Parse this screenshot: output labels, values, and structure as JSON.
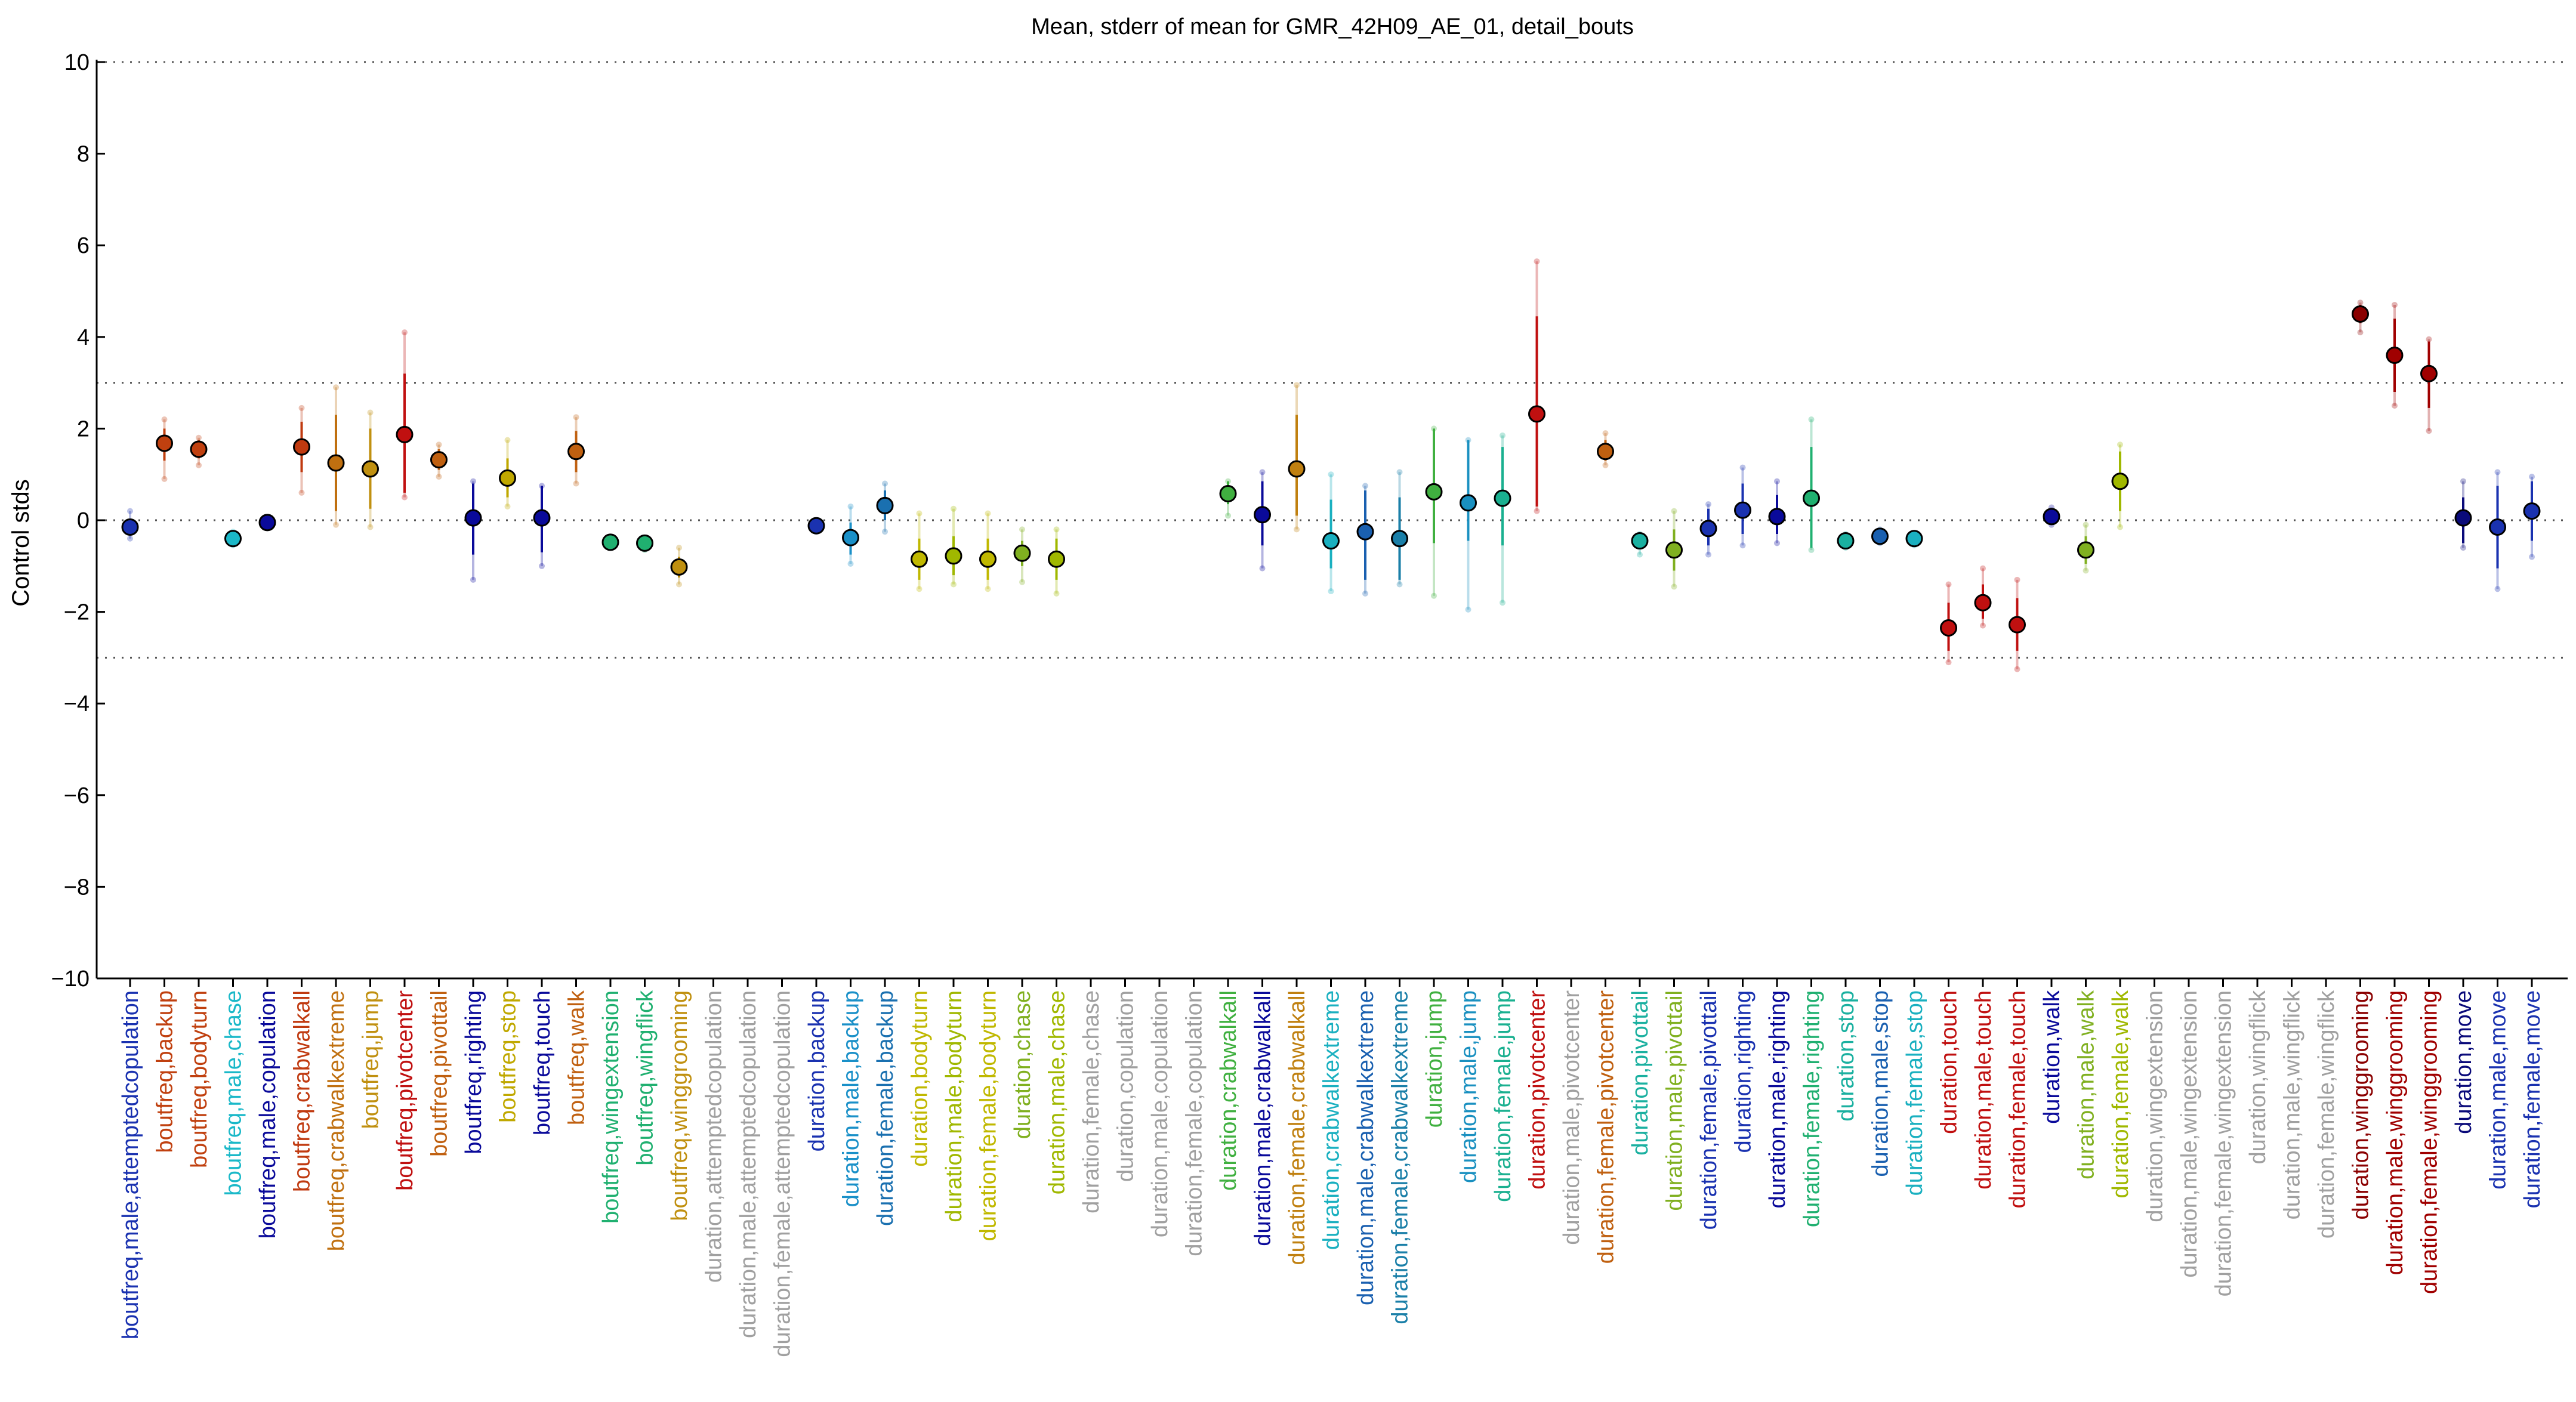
{
  "chart_data": {
    "type": "scatter",
    "title": "Mean, stderr of mean for GMR_42H09_AE_01, detail_bouts",
    "ylabel": "Control stds",
    "xlabel": "",
    "ylim": [
      -10,
      10
    ],
    "yticks": [
      -10,
      -8,
      -6,
      -4,
      -2,
      0,
      2,
      4,
      6,
      8,
      10
    ],
    "reference_lines": [
      10,
      3,
      0,
      -3,
      -10
    ],
    "grid": false,
    "points": [
      {
        "label": "boutfreq,male,attemptedcopulation",
        "mean": -0.15,
        "lo": -0.3,
        "hi": 0.0,
        "lo2": -0.4,
        "hi2": 0.2,
        "color": "#1a32b0"
      },
      {
        "label": "boutfreq,backup",
        "mean": 1.68,
        "lo": 1.3,
        "hi": 2.0,
        "lo2": 0.9,
        "hi2": 2.2,
        "color": "#c0400f"
      },
      {
        "label": "boutfreq,bodyturn",
        "mean": 1.55,
        "lo": 1.35,
        "hi": 1.75,
        "lo2": 1.2,
        "hi2": 1.8,
        "color": "#c0400f"
      },
      {
        "label": "boutfreq,male,chase",
        "mean": -0.4,
        "lo": -0.5,
        "hi": -0.3,
        "lo2": -0.55,
        "hi2": -0.25,
        "color": "#1ab8c8"
      },
      {
        "label": "boutfreq,male,copulation",
        "mean": -0.05,
        "lo": -0.12,
        "hi": 0.02,
        "lo2": -0.15,
        "hi2": 0.05,
        "color": "#0a0a9a"
      },
      {
        "label": "boutfreq,crabwalkall",
        "mean": 1.6,
        "lo": 1.05,
        "hi": 2.15,
        "lo2": 0.6,
        "hi2": 2.45,
        "color": "#c03a10"
      },
      {
        "label": "boutfreq,crabwalkextreme",
        "mean": 1.25,
        "lo": 0.2,
        "hi": 2.3,
        "lo2": -0.1,
        "hi2": 2.9,
        "color": "#c07010"
      },
      {
        "label": "boutfreq,jump",
        "mean": 1.12,
        "lo": 0.25,
        "hi": 2.0,
        "lo2": -0.15,
        "hi2": 2.35,
        "color": "#c09010"
      },
      {
        "label": "boutfreq,pivotcenter",
        "mean": 1.87,
        "lo": 0.6,
        "hi": 3.2,
        "lo2": 0.5,
        "hi2": 4.1,
        "color": "#c01010"
      },
      {
        "label": "boutfreq,pivottail",
        "mean": 1.32,
        "lo": 1.1,
        "hi": 1.55,
        "lo2": 0.95,
        "hi2": 1.65,
        "color": "#c06010"
      },
      {
        "label": "boutfreq,righting",
        "mean": 0.05,
        "lo": -0.75,
        "hi": 0.8,
        "lo2": -1.3,
        "hi2": 0.85,
        "color": "#0a0a9a"
      },
      {
        "label": "boutfreq,stop",
        "mean": 0.92,
        "lo": 0.5,
        "hi": 1.35,
        "lo2": 0.3,
        "hi2": 1.75,
        "color": "#c0a800"
      },
      {
        "label": "boutfreq,touch",
        "mean": 0.05,
        "lo": -0.7,
        "hi": 0.75,
        "lo2": -1.0,
        "hi2": 0.75,
        "color": "#0a0a9a"
      },
      {
        "label": "boutfreq,walk",
        "mean": 1.5,
        "lo": 1.05,
        "hi": 1.95,
        "lo2": 0.8,
        "hi2": 2.25,
        "color": "#c06010"
      },
      {
        "label": "boutfreq,wingextension",
        "mean": -0.48,
        "lo": -0.55,
        "hi": -0.42,
        "lo2": -0.6,
        "hi2": -0.4,
        "color": "#20b070"
      },
      {
        "label": "boutfreq,wingflick",
        "mean": -0.5,
        "lo": -0.6,
        "hi": -0.42,
        "lo2": -0.65,
        "hi2": -0.38,
        "color": "#20b070"
      },
      {
        "label": "boutfreq,winggrooming",
        "mean": -1.02,
        "lo": -1.25,
        "hi": -0.8,
        "lo2": -1.4,
        "hi2": -0.6,
        "color": "#c09010"
      },
      {
        "label": "duration,attemptedcopulation",
        "mean": null,
        "color": "#a0a0a0"
      },
      {
        "label": "duration,male,attemptedcopulation",
        "mean": null,
        "color": "#a0a0a0"
      },
      {
        "label": "duration,female,attemptedcopulation",
        "mean": null,
        "color": "#a0a0a0"
      },
      {
        "label": "duration,backup",
        "mean": -0.12,
        "lo": -0.2,
        "hi": -0.05,
        "lo2": -0.25,
        "hi2": -0.05,
        "color": "#1a32b0"
      },
      {
        "label": "duration,male,backup",
        "mean": -0.38,
        "lo": -0.75,
        "hi": -0.05,
        "lo2": -0.95,
        "hi2": 0.3,
        "color": "#1a90c8"
      },
      {
        "label": "duration,female,backup",
        "mean": 0.32,
        "lo": 0.0,
        "hi": 0.65,
        "lo2": -0.25,
        "hi2": 0.8,
        "color": "#1a70b0"
      },
      {
        "label": "duration,bodyturn",
        "mean": -0.85,
        "lo": -1.3,
        "hi": -0.4,
        "lo2": -1.5,
        "hi2": 0.15,
        "color": "#c0b800"
      },
      {
        "label": "duration,male,bodyturn",
        "mean": -0.78,
        "lo": -1.2,
        "hi": -0.35,
        "lo2": -1.4,
        "hi2": 0.25,
        "color": "#a0b800"
      },
      {
        "label": "duration,female,bodyturn",
        "mean": -0.85,
        "lo": -1.3,
        "hi": -0.4,
        "lo2": -1.5,
        "hi2": 0.15,
        "color": "#c0b800"
      },
      {
        "label": "duration,chase",
        "mean": -0.72,
        "lo": -1.0,
        "hi": -0.45,
        "lo2": -1.35,
        "hi2": -0.2,
        "color": "#80b020"
      },
      {
        "label": "duration,male,chase",
        "mean": -0.85,
        "lo": -1.3,
        "hi": -0.4,
        "lo2": -1.6,
        "hi2": -0.2,
        "color": "#a0b800"
      },
      {
        "label": "duration,female,chase",
        "mean": null,
        "color": "#a0a0a0"
      },
      {
        "label": "duration,copulation",
        "mean": null,
        "color": "#a0a0a0"
      },
      {
        "label": "duration,male,copulation",
        "mean": null,
        "color": "#a0a0a0"
      },
      {
        "label": "duration,female,copulation",
        "mean": null,
        "color": "#a0a0a0"
      },
      {
        "label": "duration,crabwalkall",
        "mean": 0.58,
        "lo": 0.35,
        "hi": 0.85,
        "lo2": 0.1,
        "hi2": 0.85,
        "color": "#40b040"
      },
      {
        "label": "duration,male,crabwalkall",
        "mean": 0.12,
        "lo": -0.55,
        "hi": 0.85,
        "lo2": -1.05,
        "hi2": 1.05,
        "color": "#0a0a9a"
      },
      {
        "label": "duration,female,crabwalkall",
        "mean": 1.12,
        "lo": 0.1,
        "hi": 2.3,
        "lo2": -0.2,
        "hi2": 2.95,
        "color": "#c08010"
      },
      {
        "label": "duration,crabwalkextreme",
        "mean": -0.45,
        "lo": -1.05,
        "hi": 0.45,
        "lo2": -1.55,
        "hi2": 1.0,
        "color": "#1ab0c0"
      },
      {
        "label": "duration,male,crabwalkextreme",
        "mean": -0.25,
        "lo": -1.3,
        "hi": 0.65,
        "lo2": -1.6,
        "hi2": 0.75,
        "color": "#1a60b0"
      },
      {
        "label": "duration,female,crabwalkextreme",
        "mean": -0.4,
        "lo": -1.3,
        "hi": 0.5,
        "lo2": -1.4,
        "hi2": 1.05,
        "color": "#1a7fa8"
      },
      {
        "label": "duration,jump",
        "mean": 0.62,
        "lo": -0.5,
        "hi": 2.0,
        "lo2": -1.65,
        "hi2": 2.0,
        "color": "#40b040"
      },
      {
        "label": "duration,male,jump",
        "mean": 0.38,
        "lo": -0.45,
        "hi": 1.75,
        "lo2": -1.95,
        "hi2": 1.75,
        "color": "#1a90c0"
      },
      {
        "label": "duration,female,jump",
        "mean": 0.48,
        "lo": -0.55,
        "hi": 1.6,
        "lo2": -1.8,
        "hi2": 1.85,
        "color": "#1ab090"
      },
      {
        "label": "duration,pivotcenter",
        "mean": 2.32,
        "lo": 0.3,
        "hi": 4.45,
        "lo2": 0.2,
        "hi2": 5.65,
        "color": "#c01010"
      },
      {
        "label": "duration,male,pivotcenter",
        "mean": null,
        "color": "#a0a0a0"
      },
      {
        "label": "duration,female,pivotcenter",
        "mean": 1.5,
        "lo": 1.3,
        "hi": 1.75,
        "lo2": 1.2,
        "hi2": 1.9,
        "color": "#c06010"
      },
      {
        "label": "duration,pivottail",
        "mean": -0.45,
        "lo": -0.6,
        "hi": -0.3,
        "lo2": -0.75,
        "hi2": -0.3,
        "color": "#1ab0a0"
      },
      {
        "label": "duration,male,pivottail",
        "mean": -0.65,
        "lo": -1.1,
        "hi": -0.2,
        "lo2": -1.45,
        "hi2": 0.2,
        "color": "#80b020"
      },
      {
        "label": "duration,female,pivottail",
        "mean": -0.18,
        "lo": -0.55,
        "hi": 0.25,
        "lo2": -0.75,
        "hi2": 0.35,
        "color": "#1a32b0"
      },
      {
        "label": "duration,righting",
        "mean": 0.22,
        "lo": -0.3,
        "hi": 0.8,
        "lo2": -0.55,
        "hi2": 1.15,
        "color": "#1a32b0"
      },
      {
        "label": "duration,male,righting",
        "mean": 0.08,
        "lo": -0.3,
        "hi": 0.55,
        "lo2": -0.5,
        "hi2": 0.85,
        "color": "#0a0a9a"
      },
      {
        "label": "duration,female,righting",
        "mean": 0.48,
        "lo": -0.6,
        "hi": 1.6,
        "lo2": -0.65,
        "hi2": 2.2,
        "color": "#20b070"
      },
      {
        "label": "duration,stop",
        "mean": -0.45,
        "lo": -0.55,
        "hi": -0.35,
        "lo2": -0.6,
        "hi2": -0.3,
        "color": "#1ab0a0"
      },
      {
        "label": "duration,male,stop",
        "mean": -0.35,
        "lo": -0.45,
        "hi": -0.25,
        "lo2": -0.5,
        "hi2": -0.2,
        "color": "#1a60b0"
      },
      {
        "label": "duration,female,stop",
        "mean": -0.4,
        "lo": -0.5,
        "hi": -0.32,
        "lo2": -0.55,
        "hi2": -0.3,
        "color": "#1ab0c0"
      },
      {
        "label": "duration,touch",
        "mean": -2.35,
        "lo": -2.85,
        "hi": -1.8,
        "lo2": -3.1,
        "hi2": -1.4,
        "color": "#c01010"
      },
      {
        "label": "duration,male,touch",
        "mean": -1.8,
        "lo": -2.15,
        "hi": -1.4,
        "lo2": -2.3,
        "hi2": -1.05,
        "color": "#c01010"
      },
      {
        "label": "duration,female,touch",
        "mean": -2.28,
        "lo": -2.85,
        "hi": -1.7,
        "lo2": -3.25,
        "hi2": -1.3,
        "color": "#c01010"
      },
      {
        "label": "duration,walk",
        "mean": 0.08,
        "lo": -0.05,
        "hi": 0.2,
        "lo2": -0.1,
        "hi2": 0.28,
        "color": "#0a0a9a"
      },
      {
        "label": "duration,male,walk",
        "mean": -0.65,
        "lo": -0.95,
        "hi": -0.35,
        "lo2": -1.1,
        "hi2": -0.1,
        "color": "#80b020"
      },
      {
        "label": "duration,female,walk",
        "mean": 0.85,
        "lo": 0.2,
        "hi": 1.5,
        "lo2": -0.15,
        "hi2": 1.65,
        "color": "#a0b800"
      },
      {
        "label": "duration,wingextension",
        "mean": null,
        "color": "#a0a0a0"
      },
      {
        "label": "duration,male,wingextension",
        "mean": null,
        "color": "#a0a0a0"
      },
      {
        "label": "duration,female,wingextension",
        "mean": null,
        "color": "#a0a0a0"
      },
      {
        "label": "duration,wingflick",
        "mean": null,
        "color": "#a0a0a0"
      },
      {
        "label": "duration,male,wingflick",
        "mean": null,
        "color": "#a0a0a0"
      },
      {
        "label": "duration,female,wingflick",
        "mean": null,
        "color": "#a0a0a0"
      },
      {
        "label": "duration,winggrooming",
        "mean": 4.5,
        "lo": 4.3,
        "hi": 4.7,
        "lo2": 4.1,
        "hi2": 4.75,
        "color": "#8a0000"
      },
      {
        "label": "duration,male,winggrooming",
        "mean": 3.6,
        "lo": 2.8,
        "hi": 4.4,
        "lo2": 2.5,
        "hi2": 4.7,
        "color": "#a00000"
      },
      {
        "label": "duration,female,winggrooming",
        "mean": 3.2,
        "lo": 2.45,
        "hi": 3.9,
        "lo2": 1.95,
        "hi2": 3.95,
        "color": "#a00000"
      },
      {
        "label": "duration,move",
        "mean": 0.05,
        "lo": -0.5,
        "hi": 0.5,
        "lo2": -0.6,
        "hi2": 0.85,
        "color": "#0a0a7a"
      },
      {
        "label": "duration,male,move",
        "mean": -0.15,
        "lo": -1.05,
        "hi": 0.75,
        "lo2": -1.5,
        "hi2": 1.05,
        "color": "#1a32b0"
      },
      {
        "label": "duration,female,move",
        "mean": 0.2,
        "lo": -0.45,
        "hi": 0.85,
        "lo2": -0.8,
        "hi2": 0.95,
        "color": "#1a32b0"
      }
    ]
  }
}
